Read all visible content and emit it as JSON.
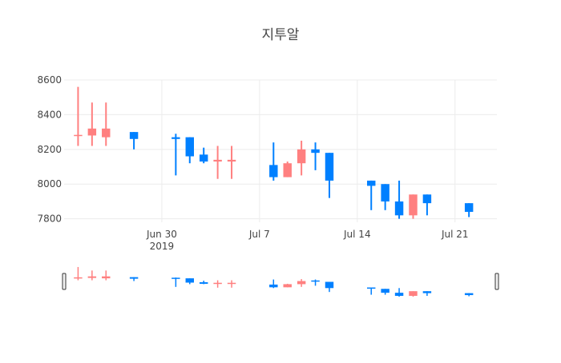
{
  "chart_data": {
    "type": "candlestick",
    "title": "지투알",
    "xlabel": "",
    "ylabel": "",
    "ylim": [
      7780,
      8600
    ],
    "x_range": [
      "2019-06-23",
      "2019-07-24"
    ],
    "y_ticks": [
      7800,
      8000,
      8200,
      8400,
      8600
    ],
    "x_ticks": [
      {
        "date": "2019-06-30",
        "label": "Jun 30",
        "sublabel": "2019"
      },
      {
        "date": "2019-07-07",
        "label": "Jul 7",
        "sublabel": ""
      },
      {
        "date": "2019-07-14",
        "label": "Jul 14",
        "sublabel": ""
      },
      {
        "date": "2019-07-21",
        "label": "Jul 21",
        "sublabel": ""
      }
    ],
    "grid": true,
    "legend": "none",
    "increasing_color": "#ff8080",
    "decreasing_color": "#0080ff",
    "range_slider": true,
    "candles": [
      {
        "date": "2019-06-24",
        "open": 8280,
        "high": 8560,
        "low": 8220,
        "close": 8280
      },
      {
        "date": "2019-06-25",
        "open": 8280,
        "high": 8470,
        "low": 8220,
        "close": 8320
      },
      {
        "date": "2019-06-26",
        "open": 8270,
        "high": 8470,
        "low": 8220,
        "close": 8320
      },
      {
        "date": "2019-06-28",
        "open": 8300,
        "high": 8300,
        "low": 8200,
        "close": 8260
      },
      {
        "date": "2019-07-01",
        "open": 8270,
        "high": 8290,
        "low": 8050,
        "close": 8260
      },
      {
        "date": "2019-07-02",
        "open": 8270,
        "high": 8270,
        "low": 8120,
        "close": 8160
      },
      {
        "date": "2019-07-03",
        "open": 8170,
        "high": 8210,
        "low": 8120,
        "close": 8130
      },
      {
        "date": "2019-07-04",
        "open": 8130,
        "high": 8220,
        "low": 8030,
        "close": 8140
      },
      {
        "date": "2019-07-05",
        "open": 8130,
        "high": 8220,
        "low": 8030,
        "close": 8140
      },
      {
        "date": "2019-07-08",
        "open": 8110,
        "high": 8240,
        "low": 8020,
        "close": 8040
      },
      {
        "date": "2019-07-09",
        "open": 8040,
        "high": 8130,
        "low": 8040,
        "close": 8120
      },
      {
        "date": "2019-07-10",
        "open": 8120,
        "high": 8250,
        "low": 8050,
        "close": 8200
      },
      {
        "date": "2019-07-11",
        "open": 8200,
        "high": 8240,
        "low": 8080,
        "close": 8180
      },
      {
        "date": "2019-07-12",
        "open": 8180,
        "high": 8180,
        "low": 7920,
        "close": 8020
      },
      {
        "date": "2019-07-15",
        "open": 8020,
        "high": 8020,
        "low": 7850,
        "close": 7990
      },
      {
        "date": "2019-07-16",
        "open": 8000,
        "high": 8000,
        "low": 7850,
        "close": 7900
      },
      {
        "date": "2019-07-17",
        "open": 7900,
        "high": 8020,
        "low": 7800,
        "close": 7820
      },
      {
        "date": "2019-07-18",
        "open": 7820,
        "high": 7940,
        "low": 7800,
        "close": 7940
      },
      {
        "date": "2019-07-19",
        "open": 7940,
        "high": 7940,
        "low": 7820,
        "close": 7890
      },
      {
        "date": "2019-07-22",
        "open": 7890,
        "high": 7890,
        "low": 7810,
        "close": 7840
      }
    ]
  }
}
